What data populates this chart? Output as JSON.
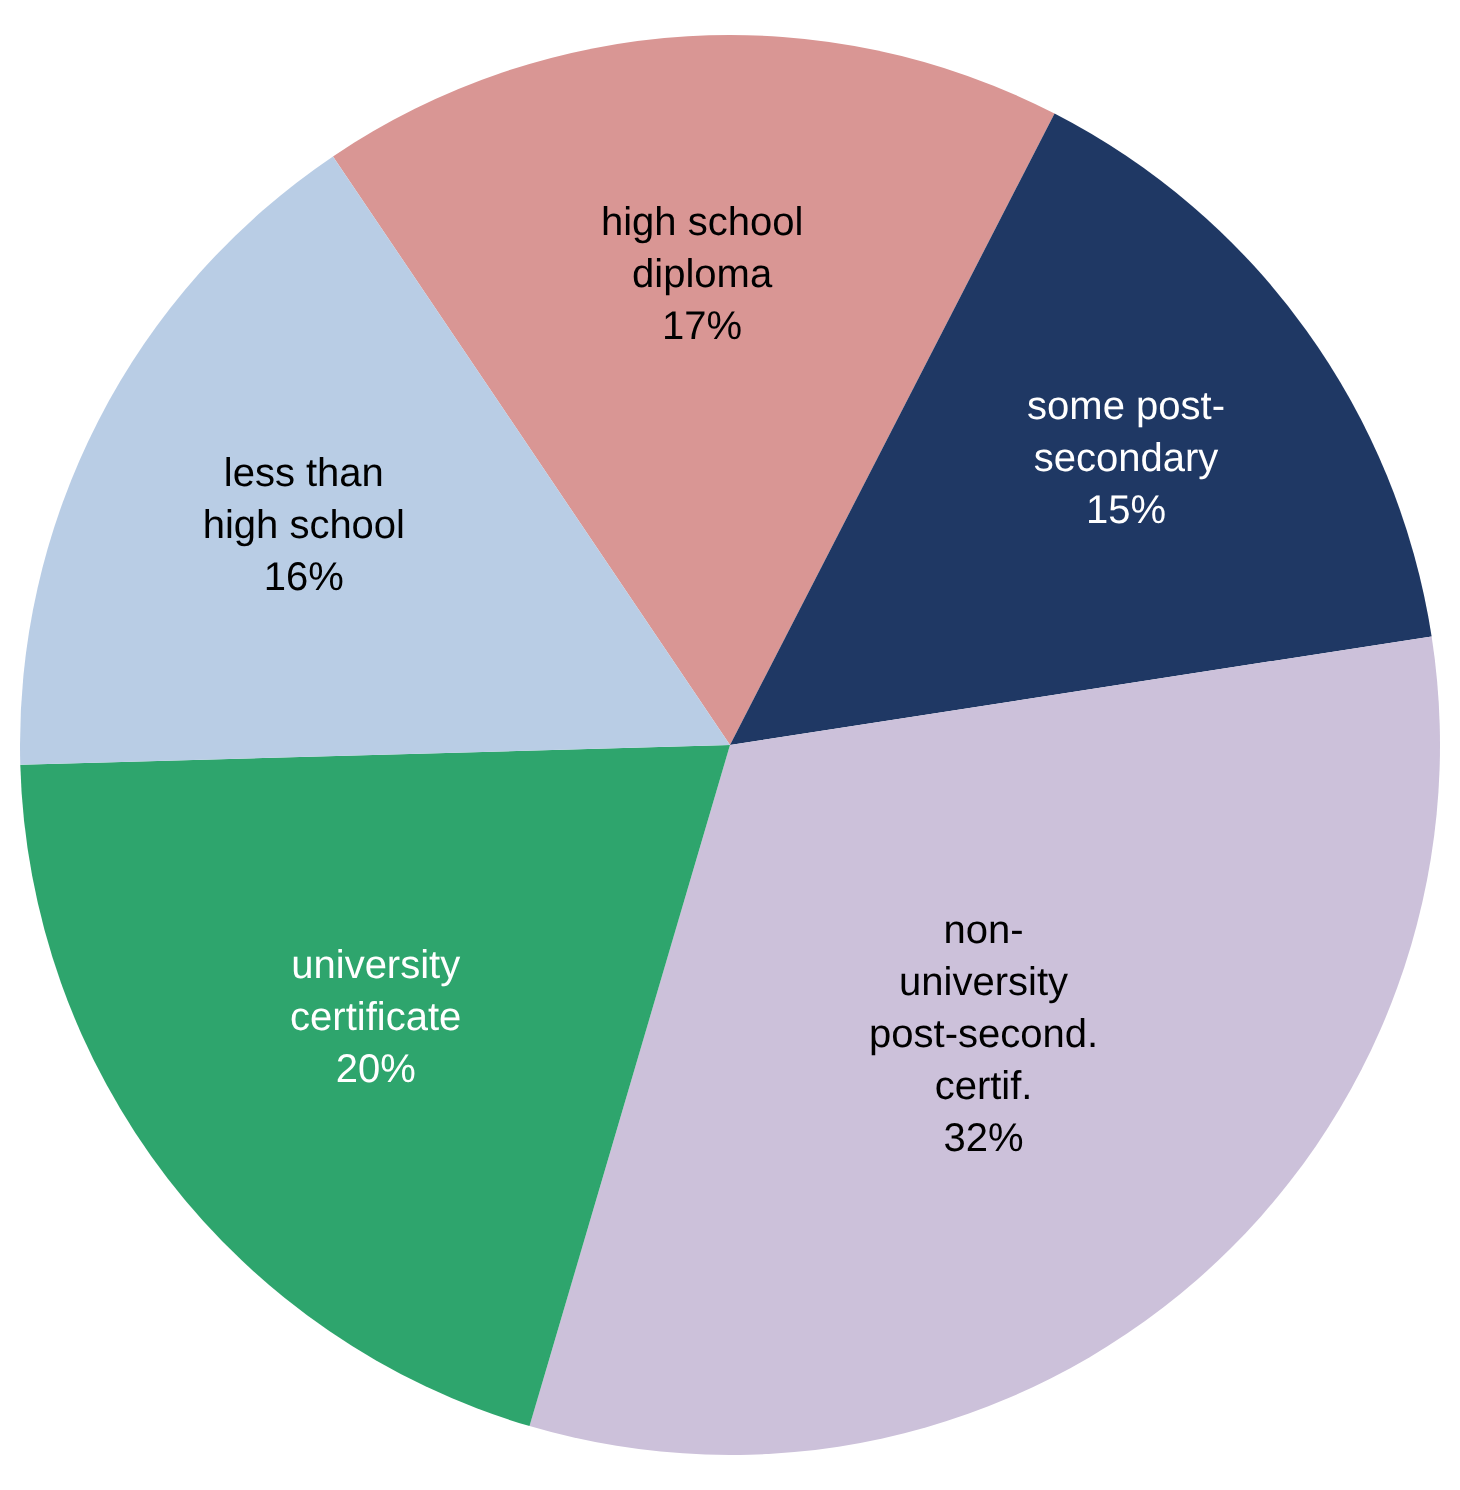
{
  "chart_data": {
    "type": "pie",
    "categories": [
      "high school diploma",
      "some post-secondary",
      "non-university post-second. certif.",
      "university certificate",
      "less than high school"
    ],
    "values": [
      17,
      15,
      32,
      20,
      16
    ],
    "value_labels": [
      "17%",
      "15%",
      "32%",
      "20%",
      "16%"
    ],
    "colors": [
      "#d99694",
      "#1f3864",
      "#ccc1da",
      "#2ea56d",
      "#b9cde5"
    ],
    "legend": false
  }
}
